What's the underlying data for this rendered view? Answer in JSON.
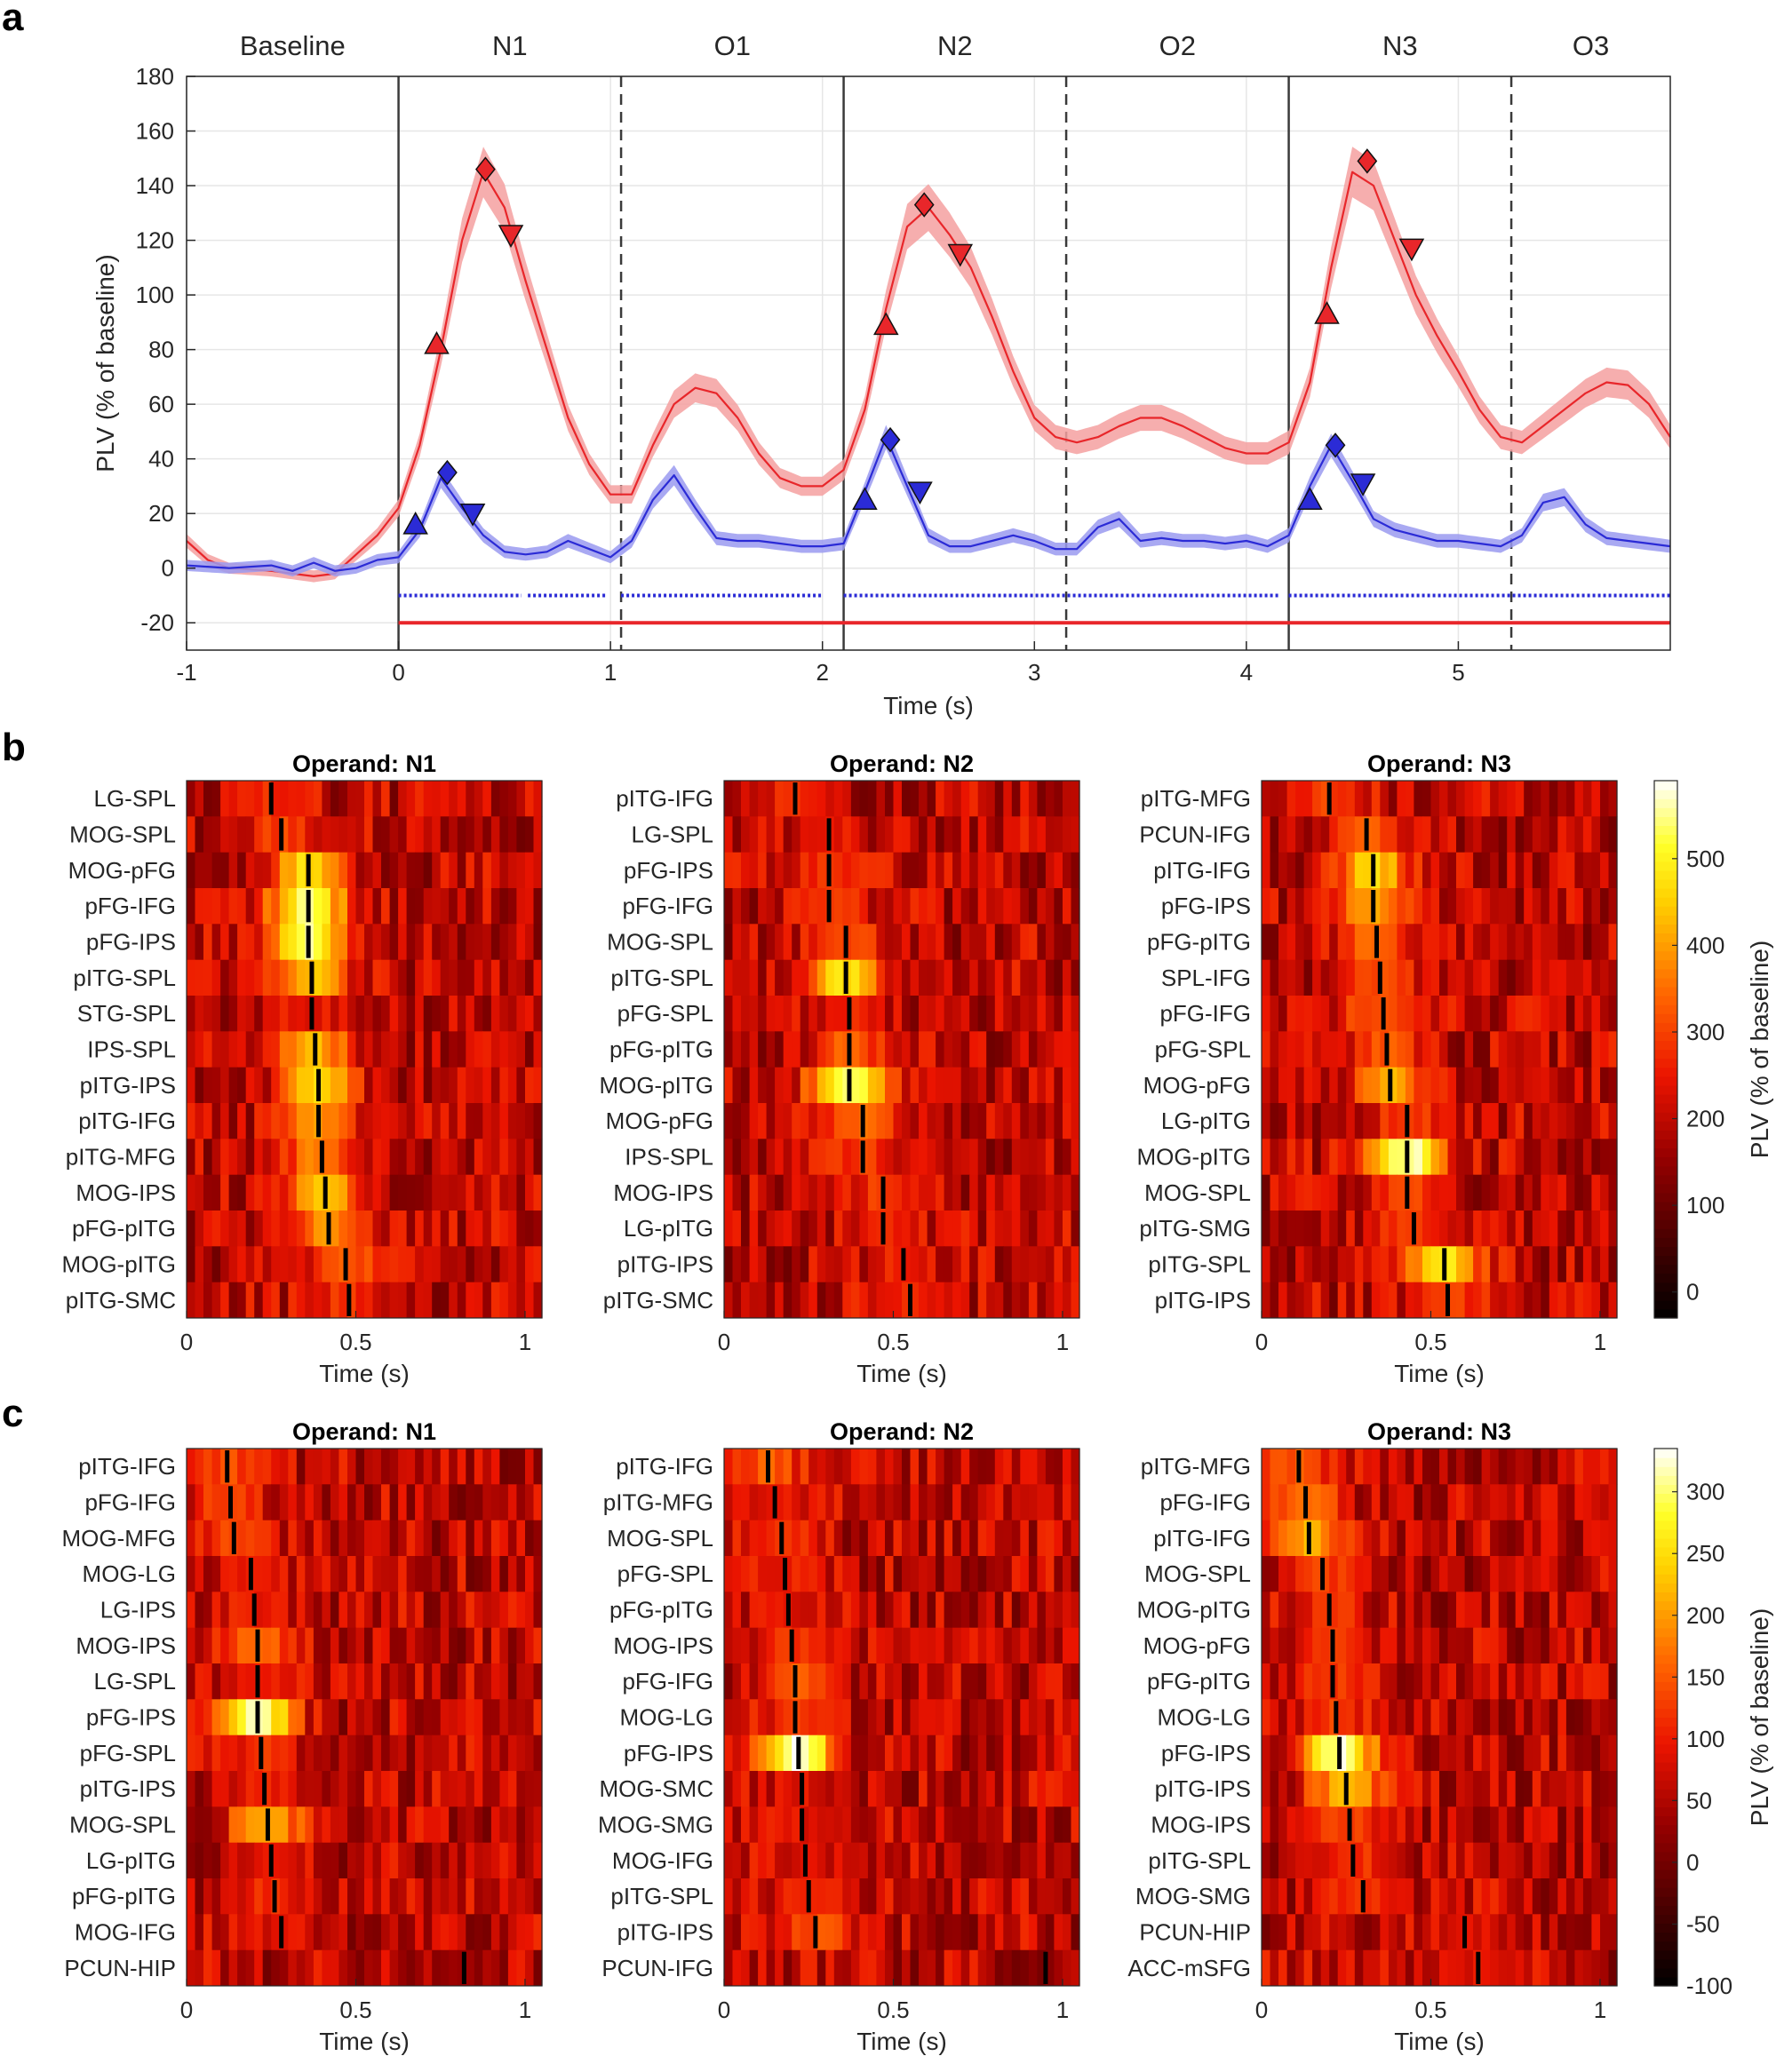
{
  "chart_data": [
    {
      "panel": "a",
      "type": "line",
      "xlabel": "Time (s)",
      "ylabel": "PLV (% of baseline)",
      "xlim": [
        -1,
        6
      ],
      "ylim": [
        -30,
        180
      ],
      "xticks": [
        -1,
        0,
        1,
        2,
        3,
        4,
        5
      ],
      "yticks": [
        -20,
        0,
        20,
        40,
        60,
        80,
        100,
        120,
        140,
        160,
        180
      ],
      "segments": [
        {
          "label": "Baseline",
          "start": -1,
          "end": 0
        },
        {
          "label": "N1",
          "start": 0,
          "end": 1.05
        },
        {
          "label": "O1",
          "start": 1.05,
          "end": 2.1
        },
        {
          "label": "N2",
          "start": 2.1,
          "end": 3.15
        },
        {
          "label": "O2",
          "start": 3.15,
          "end": 4.2
        },
        {
          "label": "N3",
          "start": 4.2,
          "end": 5.25
        },
        {
          "label": "O3",
          "start": 5.25,
          "end": 6
        }
      ],
      "solid_vlines": [
        0,
        2.1,
        4.2
      ],
      "dashed_vlines": [
        1.05,
        3.15,
        5.25
      ],
      "colors": {
        "red": "#e8262a",
        "red_band": "#f4a0a0",
        "blue": "#2b2bd6",
        "blue_band": "#9a9af0"
      },
      "series": [
        {
          "name": "red",
          "color": "#e8262a",
          "x": [
            -1,
            -0.9,
            -0.8,
            -0.6,
            -0.5,
            -0.4,
            -0.3,
            -0.2,
            -0.1,
            0,
            0.1,
            0.2,
            0.3,
            0.4,
            0.5,
            0.6,
            0.7,
            0.8,
            0.9,
            1.0,
            1.1,
            1.2,
            1.3,
            1.4,
            1.5,
            1.6,
            1.7,
            1.8,
            1.9,
            2.0,
            2.1,
            2.2,
            2.3,
            2.4,
            2.5,
            2.6,
            2.7,
            2.8,
            2.9,
            3.0,
            3.1,
            3.2,
            3.3,
            3.4,
            3.5,
            3.6,
            3.7,
            3.8,
            3.9,
            4.0,
            4.1,
            4.2,
            4.3,
            4.4,
            4.5,
            4.6,
            4.7,
            4.8,
            4.9,
            5.0,
            5.1,
            5.2,
            5.3,
            5.4,
            5.5,
            5.6,
            5.7,
            5.8,
            5.9,
            6.0
          ],
          "y": [
            10,
            3,
            0,
            -1,
            -2,
            -3,
            -2,
            5,
            12,
            22,
            45,
            80,
            120,
            145,
            132,
            105,
            80,
            55,
            38,
            27,
            27,
            45,
            60,
            66,
            64,
            55,
            42,
            33,
            30,
            30,
            36,
            58,
            95,
            125,
            132,
            122,
            110,
            92,
            72,
            55,
            48,
            46,
            48,
            52,
            55,
            55,
            52,
            48,
            44,
            42,
            42,
            46,
            68,
            110,
            145,
            140,
            120,
            100,
            85,
            72,
            58,
            48,
            46,
            52,
            58,
            64,
            68,
            67,
            60,
            48
          ]
        },
        {
          "name": "blue",
          "color": "#2b2bd6",
          "x": [
            -1,
            -0.8,
            -0.6,
            -0.5,
            -0.4,
            -0.3,
            -0.2,
            -0.1,
            0,
            0.1,
            0.2,
            0.3,
            0.4,
            0.5,
            0.6,
            0.7,
            0.8,
            0.9,
            1.0,
            1.1,
            1.2,
            1.3,
            1.4,
            1.5,
            1.6,
            1.7,
            1.8,
            1.9,
            2.0,
            2.1,
            2.2,
            2.3,
            2.4,
            2.5,
            2.6,
            2.7,
            2.8,
            2.9,
            3.0,
            3.1,
            3.2,
            3.3,
            3.4,
            3.5,
            3.6,
            3.7,
            3.8,
            3.9,
            4.0,
            4.1,
            4.2,
            4.3,
            4.4,
            4.5,
            4.6,
            4.7,
            4.8,
            4.9,
            5.0,
            5.1,
            5.2,
            5.3,
            5.4,
            5.5,
            5.6,
            5.7,
            5.8,
            5.9,
            6.0
          ],
          "y": [
            1,
            0,
            1,
            -1,
            2,
            -1,
            0,
            3,
            4,
            14,
            33,
            22,
            12,
            6,
            5,
            6,
            10,
            7,
            4,
            10,
            25,
            34,
            22,
            11,
            10,
            10,
            9,
            8,
            8,
            9,
            28,
            48,
            30,
            12,
            8,
            8,
            10,
            12,
            10,
            7,
            7,
            15,
            18,
            10,
            11,
            10,
            10,
            9,
            10,
            8,
            12,
            30,
            45,
            32,
            18,
            14,
            12,
            10,
            10,
            9,
            8,
            12,
            24,
            26,
            16,
            11,
            10,
            9,
            8
          ]
        }
      ],
      "markers": [
        {
          "series": "red",
          "shape": "triangle-up",
          "x": 0.18,
          "y": 82
        },
        {
          "series": "red",
          "shape": "diamond",
          "x": 0.41,
          "y": 146
        },
        {
          "series": "red",
          "shape": "triangle-down",
          "x": 0.53,
          "y": 122
        },
        {
          "series": "red",
          "shape": "triangle-up",
          "x": 2.3,
          "y": 89
        },
        {
          "series": "red",
          "shape": "diamond",
          "x": 2.48,
          "y": 133
        },
        {
          "series": "red",
          "shape": "triangle-down",
          "x": 2.65,
          "y": 115
        },
        {
          "series": "red",
          "shape": "triangle-up",
          "x": 4.38,
          "y": 93
        },
        {
          "series": "red",
          "shape": "diamond",
          "x": 4.57,
          "y": 149
        },
        {
          "series": "red",
          "shape": "triangle-down",
          "x": 4.78,
          "y": 117
        },
        {
          "series": "blue",
          "shape": "triangle-up",
          "x": 0.08,
          "y": 16
        },
        {
          "series": "blue",
          "shape": "diamond",
          "x": 0.23,
          "y": 35
        },
        {
          "series": "blue",
          "shape": "triangle-down",
          "x": 0.35,
          "y": 20
        },
        {
          "series": "blue",
          "shape": "triangle-up",
          "x": 2.2,
          "y": 25
        },
        {
          "series": "blue",
          "shape": "diamond",
          "x": 2.32,
          "y": 47
        },
        {
          "series": "blue",
          "shape": "triangle-down",
          "x": 2.46,
          "y": 28
        },
        {
          "series": "blue",
          "shape": "triangle-up",
          "x": 4.3,
          "y": 25
        },
        {
          "series": "blue",
          "shape": "diamond",
          "x": 4.42,
          "y": 45
        },
        {
          "series": "blue",
          "shape": "triangle-down",
          "x": 4.55,
          "y": 31
        }
      ],
      "significance_bars": [
        {
          "series": "blue",
          "y": -10,
          "intervals": [
            [
              0,
              0.58
            ],
            [
              0.61,
              0.98
            ],
            [
              1.05,
              2.0
            ],
            [
              2.1,
              4.15
            ],
            [
              4.2,
              6
            ]
          ]
        },
        {
          "series": "red",
          "y": -20,
          "intervals": [
            [
              0,
              6
            ]
          ]
        }
      ]
    },
    {
      "panel": "b",
      "type": "heatmap",
      "xlabel": "Time (s)",
      "colorbar": {
        "label": "PLV (% of baseline)",
        "range": [
          -30,
          590
        ],
        "ticks": [
          0,
          100,
          200,
          300,
          400,
          500
        ]
      },
      "xlim": [
        0,
        1.05
      ],
      "xticks": [
        0,
        0.5,
        1
      ],
      "subplots": [
        {
          "title": "Operand: N1",
          "rows": [
            "LG-SPL",
            "MOG-SPL",
            "MOG-pFG",
            "pFG-IFG",
            "pFG-IPS",
            "pITG-SPL",
            "STG-SPL",
            "IPS-SPL",
            "pITG-IPS",
            "pITG-IFG",
            "pITG-MFG",
            "MOG-IPS",
            "pFG-pITG",
            "MOG-pITG",
            "pITG-SMC"
          ],
          "peak_times": [
            0.25,
            0.28,
            0.36,
            0.36,
            0.36,
            0.37,
            0.37,
            0.38,
            0.39,
            0.39,
            0.4,
            0.41,
            0.42,
            0.47,
            0.48
          ],
          "peak_values": [
            280,
            300,
            480,
            560,
            560,
            430,
            250,
            420,
            460,
            400,
            370,
            440,
            390,
            330,
            280
          ]
        },
        {
          "title": "Operand: N2",
          "rows": [
            "pITG-IFG",
            "LG-SPL",
            "pFG-IPS",
            "pFG-IFG",
            "MOG-SPL",
            "pITG-SPL",
            "pFG-SPL",
            "pFG-pITG",
            "MOG-pITG",
            "MOG-pFG",
            "IPS-SPL",
            "MOG-IPS",
            "LG-pITG",
            "pITG-IPS",
            "pITG-SMC"
          ],
          "peak_times": [
            0.21,
            0.31,
            0.31,
            0.31,
            0.36,
            0.36,
            0.37,
            0.37,
            0.37,
            0.41,
            0.41,
            0.47,
            0.47,
            0.53,
            0.55
          ],
          "peak_values": [
            270,
            260,
            300,
            290,
            300,
            480,
            260,
            330,
            560,
            350,
            300,
            290,
            270,
            260,
            280
          ]
        },
        {
          "title": "Operand: N3",
          "rows": [
            "pITG-MFG",
            "PCUN-IFG",
            "pITG-IFG",
            "pFG-IPS",
            "pFG-pITG",
            "SPL-IFG",
            "pFG-IFG",
            "pFG-SPL",
            "MOG-pFG",
            "LG-pITG",
            "MOG-pITG",
            "MOG-SPL",
            "pITG-SMG",
            "pITG-SPL",
            "pITG-IPS"
          ],
          "peak_times": [
            0.2,
            0.31,
            0.33,
            0.33,
            0.34,
            0.35,
            0.36,
            0.37,
            0.38,
            0.43,
            0.43,
            0.43,
            0.45,
            0.54,
            0.55
          ],
          "peak_values": [
            300,
            320,
            460,
            400,
            360,
            300,
            340,
            330,
            430,
            300,
            570,
            320,
            290,
            500,
            310
          ]
        }
      ]
    },
    {
      "panel": "c",
      "type": "heatmap",
      "xlabel": "Time (s)",
      "colorbar": {
        "label": "PLV (% of baseline)",
        "range": [
          -100,
          335
        ],
        "ticks": [
          -100,
          -50,
          0,
          50,
          100,
          150,
          200,
          250,
          300
        ]
      },
      "xlim": [
        0,
        1.05
      ],
      "xticks": [
        0,
        0.5,
        1
      ],
      "subplots": [
        {
          "title": "Operand: N1",
          "rows": [
            "pITG-IFG",
            "pFG-IFG",
            "MOG-MFG",
            "MOG-LG",
            "LG-IPS",
            "MOG-IPS",
            "LG-SPL",
            "pFG-IPS",
            "pFG-SPL",
            "pITG-IPS",
            "MOG-SPL",
            "LG-pITG",
            "pFG-pITG",
            "MOG-IFG",
            "PCUN-HIP"
          ],
          "peak_times": [
            0.12,
            0.13,
            0.14,
            0.19,
            0.2,
            0.21,
            0.21,
            0.21,
            0.22,
            0.23,
            0.24,
            0.25,
            0.26,
            0.28,
            0.82
          ],
          "peak_values": [
            140,
            130,
            130,
            110,
            100,
            170,
            110,
            320,
            120,
            110,
            220,
            90,
            110,
            90,
            20
          ]
        },
        {
          "title": "Operand: N2",
          "rows": [
            "pITG-IFG",
            "pITG-MFG",
            "MOG-SPL",
            "pFG-SPL",
            "pFG-pITG",
            "MOG-IPS",
            "pFG-IFG",
            "MOG-LG",
            "pFG-IPS",
            "MOG-SMC",
            "MOG-SMG",
            "MOG-IFG",
            "pITG-SPL",
            "pITG-IPS",
            "PCUN-IFG"
          ],
          "peak_times": [
            0.13,
            0.15,
            0.17,
            0.18,
            0.19,
            0.2,
            0.21,
            0.21,
            0.22,
            0.23,
            0.23,
            0.24,
            0.25,
            0.27,
            0.95
          ],
          "peak_values": [
            150,
            100,
            110,
            100,
            90,
            120,
            160,
            120,
            330,
            90,
            90,
            90,
            100,
            140,
            20
          ]
        },
        {
          "title": "Operand: N3",
          "rows": [
            "pITG-MFG",
            "pFG-IFG",
            "pITG-IFG",
            "MOG-SPL",
            "MOG-pITG",
            "MOG-pFG",
            "pFG-pITG",
            "MOG-LG",
            "pFG-IPS",
            "pITG-IPS",
            "MOG-IPS",
            "pITG-SPL",
            "MOG-SMG",
            "PCUN-HIP",
            "ACC-mSFG"
          ],
          "peak_times": [
            0.11,
            0.13,
            0.14,
            0.18,
            0.2,
            0.21,
            0.21,
            0.22,
            0.23,
            0.25,
            0.26,
            0.27,
            0.3,
            0.6,
            0.64
          ],
          "peak_values": [
            150,
            170,
            220,
            130,
            120,
            120,
            120,
            130,
            320,
            220,
            130,
            120,
            120,
            80,
            90
          ]
        }
      ]
    }
  ],
  "panel_letters": {
    "a": "a",
    "b": "b",
    "c": "c"
  }
}
